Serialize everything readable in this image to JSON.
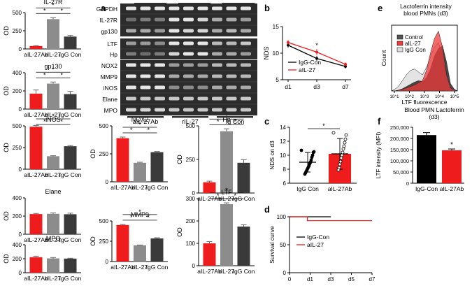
{
  "colors": {
    "red": "#ee1c1c",
    "grey": "#8c8c8c",
    "dark": "#3a3a3a",
    "black": "#000000",
    "label_red": "#e02020"
  },
  "panel_letters": {
    "a": "a",
    "b": "b",
    "c": "c",
    "d": "d",
    "e": "e",
    "f": "f"
  },
  "group_labels": [
    "aIL-27Ab",
    "rIL-27",
    "IgG Con"
  ],
  "chart_data": [
    {
      "id": "il27r",
      "type": "bar",
      "title": "IL-27R",
      "ylabel": "OD",
      "categories": [
        "aIL-27Ab",
        "rIL-27",
        "IgG Con"
      ],
      "values": [
        40,
        410,
        170
      ],
      "errors": [
        6,
        20,
        16
      ],
      "ylim": [
        0,
        500
      ],
      "yticks": [
        0,
        250,
        500
      ],
      "sig": "*"
    },
    {
      "id": "gp130",
      "type": "bar",
      "title": "gp130",
      "ylabel": "OD",
      "categories": [
        "aIL-27Ab",
        "rIL-27",
        "IgG Con"
      ],
      "values": [
        170,
        280,
        165
      ],
      "errors": [
        40,
        18,
        30
      ],
      "ylim": [
        0,
        400
      ],
      "yticks": [
        0,
        200,
        400
      ],
      "sig": "*"
    },
    {
      "id": "inos",
      "type": "bar",
      "title": "iNOS",
      "ylabel": "OD",
      "categories": [
        "aIL-27Ab",
        "rIL-27",
        "IgG Con"
      ],
      "values": [
        490,
        150,
        265
      ],
      "errors": [
        15,
        6,
        8
      ],
      "ylim": [
        0,
        500
      ],
      "yticks": [
        0,
        250,
        500
      ],
      "sig": "*"
    },
    {
      "id": "elane",
      "type": "bar",
      "title": "Elane",
      "ylabel": "OD",
      "categories": [
        "aIL-27Ab",
        "rIL-27",
        "IgG Con"
      ],
      "values": [
        222,
        225,
        220
      ],
      "errors": [
        7,
        10,
        12
      ],
      "ylim": [
        0,
        400
      ],
      "yticks": [
        0,
        200,
        400
      ],
      "sig": ""
    },
    {
      "id": "mpo",
      "type": "bar",
      "title": "MPO",
      "ylabel": "OD",
      "categories": [
        "aIL-27Ab",
        "rIL-27",
        "IgG Con"
      ],
      "values": [
        222,
        205,
        202
      ],
      "errors": [
        14,
        12,
        5
      ],
      "ylim": [
        0,
        400
      ],
      "yticks": [
        0,
        200,
        400
      ],
      "sig": ""
    },
    {
      "id": "nox2",
      "type": "bar",
      "title": "NOX2",
      "ylabel": "OD",
      "categories": [
        "aIL-27Ab",
        "rIL-27",
        "IgG Con"
      ],
      "values": [
        390,
        170,
        265
      ],
      "errors": [
        10,
        5,
        6
      ],
      "ylim": [
        0,
        500
      ],
      "yticks": [
        0,
        250,
        500
      ],
      "sig": "*"
    },
    {
      "id": "hp",
      "type": "bar",
      "title": "Hp",
      "ylabel": "OD",
      "categories": [
        "aIL-27Ab",
        "rIL-27",
        "IgG Con"
      ],
      "values": [
        80,
        460,
        225
      ],
      "errors": [
        8,
        18,
        22
      ],
      "ylim": [
        0,
        500
      ],
      "yticks": [
        0,
        250,
        500
      ],
      "sig": "*"
    },
    {
      "id": "mmp9",
      "type": "bar",
      "title": "MMP9",
      "ylabel": "OD",
      "categories": [
        "aIL-27Ab",
        "rIL-27",
        "IgG Con"
      ],
      "values": [
        450,
        200,
        285
      ],
      "errors": [
        8,
        4,
        8
      ],
      "ylim": [
        0,
        500
      ],
      "yticks": [
        0,
        250,
        500
      ],
      "sig": "*"
    },
    {
      "id": "ltf",
      "type": "bar",
      "title": "LTF",
      "ylabel": "OD",
      "categories": [
        "aIL-27Ab",
        "rIL-27",
        "IgG Con"
      ],
      "values": [
        100,
        275,
        175
      ],
      "errors": [
        8,
        6,
        8
      ],
      "ylim": [
        0,
        300
      ],
      "yticks": [
        0,
        100,
        200,
        300
      ],
      "sig": "*"
    },
    {
      "id": "b",
      "type": "line",
      "title": "",
      "xlabel": "",
      "ylabel": "NDS",
      "x": [
        "d1",
        "d3",
        "d7"
      ],
      "ylim": [
        5,
        15
      ],
      "yticks": [
        5,
        10,
        15
      ],
      "series": [
        {
          "name": "IgG-Con",
          "values": [
            11.5,
            9.0,
            7.5
          ],
          "errors": [
            0.5,
            0.5,
            0.4
          ]
        },
        {
          "name": "aIL-27",
          "values": [
            12.0,
            10.2,
            7.9
          ],
          "errors": [
            0.5,
            0.6,
            0.4
          ]
        }
      ],
      "annotation": "*",
      "legend": [
        "IgG-Con",
        "aIL-27"
      ]
    },
    {
      "id": "c",
      "type": "scatter",
      "ylabel": "NDS on d3",
      "categories": [
        "IgG Con",
        "aIL-27Ab"
      ],
      "values": [
        9.0,
        10.2
      ],
      "errors": [
        1.4,
        2.2
      ],
      "ylim": [
        6,
        14
      ],
      "yticks": [
        6,
        8,
        10,
        12,
        14
      ],
      "sig": "*",
      "points": [
        [
          10.7,
          10.5,
          10.4,
          10.0,
          9.7,
          9.3,
          9.0,
          8.8,
          8.5,
          8.3,
          8.1,
          7.9,
          7.7,
          7.5,
          7.3
        ],
        [
          13.2,
          12.9,
          12.3,
          11.8,
          11.3,
          10.9,
          10.4,
          10.0,
          9.6,
          9.1,
          8.7,
          8.2,
          7.9
        ]
      ]
    },
    {
      "id": "d",
      "type": "line",
      "title": "",
      "ylabel": "Survival curve",
      "x_ticks": [
        "0",
        "d1",
        "d3",
        "d5",
        "d7"
      ],
      "ylim": [
        0,
        100
      ],
      "yticks": [
        0,
        50,
        100
      ],
      "series": [
        {
          "name": "IgG-Con",
          "values": [
            100,
            100,
            100
          ]
        },
        {
          "name": "aIL-27",
          "values": [
            100,
            93,
            93
          ]
        }
      ],
      "legend": [
        "IgG-Con",
        "aIL-27"
      ]
    },
    {
      "id": "e",
      "type": "area",
      "title": "Lactoferrin intensity blood PMNs (d3)",
      "xlabel": "LTF fluorescence",
      "ylabel": "Count",
      "x_ticks": [
        "10^1",
        "10^2",
        "10^3",
        "10^4",
        "10^5"
      ],
      "series": [
        {
          "name": "Control",
          "values": [
            0,
            1,
            3,
            6,
            9,
            12,
            14,
            13,
            18,
            30,
            48,
            58,
            62,
            40,
            10,
            2
          ]
        },
        {
          "name": "aIL-27",
          "values": [
            0,
            1,
            2,
            4,
            6,
            8,
            11,
            14,
            28,
            52,
            72,
            82,
            60,
            22,
            4,
            1
          ]
        },
        {
          "name": "IgG Con",
          "values": [
            2,
            6,
            14,
            22,
            28,
            30,
            26,
            22,
            32,
            46,
            60,
            66,
            48,
            16,
            3,
            0
          ]
        }
      ],
      "legend": [
        "Control",
        "aIL-27",
        "IgG Con"
      ]
    },
    {
      "id": "f",
      "type": "bar",
      "title": "Blood PMN Lactoferrin (d3)",
      "ylabel": "LTF intensity (MFI)",
      "categories": [
        "IgG-Con",
        "aIL-27Ab"
      ],
      "values": [
        215000,
        147000
      ],
      "errors": [
        11000,
        6000
      ],
      "ylim": [
        0,
        250000
      ],
      "yticks": [
        0,
        50000,
        100000,
        150000,
        200000,
        250000
      ],
      "ytick_labels": [
        "0",
        "50,000",
        "100,000",
        "150,000",
        "200,000",
        "250,000"
      ],
      "sig": "*"
    }
  ],
  "gel": {
    "lanes_groups": [
      "aIL-27Ab",
      "rIL-27",
      "Ig Con"
    ],
    "rows": [
      "GAPDH",
      "IL-27R",
      "gp130",
      "LTF",
      "Hp",
      "NOX2",
      "MMP9",
      "iNOS",
      "Elane",
      "MPO"
    ],
    "intensity": [
      [
        1,
        1,
        1,
        1,
        1,
        1,
        1,
        1,
        1
      ],
      [
        0.2,
        0.3,
        0.3,
        1,
        1,
        0.9,
        0.6,
        0.6,
        0.5
      ],
      [
        0.6,
        0.6,
        0.5,
        1,
        0.9,
        0.9,
        0.6,
        0.7,
        0.6
      ],
      [
        0.5,
        0.5,
        0.4,
        1,
        1,
        1,
        0.7,
        0.7,
        0.8
      ],
      [
        0.3,
        0.2,
        0.3,
        0.9,
        1,
        1,
        0.6,
        0.6,
        0.5
      ],
      [
        1,
        1,
        1,
        0.5,
        0.5,
        0.5,
        0.7,
        0.7,
        0.7
      ],
      [
        1,
        1,
        1,
        0.6,
        0.6,
        0.6,
        0.7,
        0.7,
        0.7
      ],
      [
        1,
        1,
        1,
        0.4,
        0.4,
        0.4,
        0.6,
        0.6,
        0.6
      ],
      [
        0.8,
        0.8,
        0.8,
        0.8,
        0.8,
        0.8,
        0.8,
        0.8,
        0.8
      ],
      [
        0.9,
        0.9,
        0.9,
        0.8,
        0.8,
        0.8,
        0.8,
        0.8,
        0.8
      ]
    ]
  }
}
